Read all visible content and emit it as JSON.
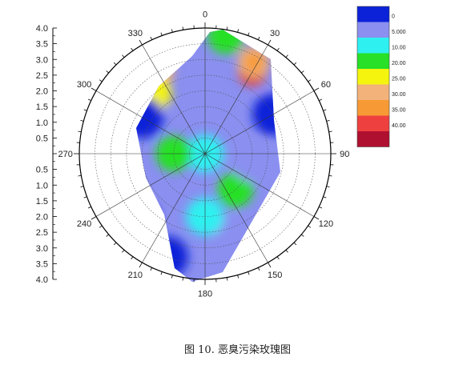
{
  "chart_data": {
    "type": "heatmap",
    "subtype": "polar-contour",
    "angular_ticks": [
      "0",
      "30",
      "60",
      "90",
      "120",
      "150",
      "180",
      "210",
      "240",
      "270",
      "300",
      "330"
    ],
    "radial_axis_upper_ticks": [
      "4.0",
      "3.5",
      "3.0",
      "2.5",
      "2.0",
      "1.5",
      "1.0",
      "0.5"
    ],
    "radial_axis_lower_ticks": [
      "0.5",
      "1.0",
      "1.5",
      "2.0",
      "2.5",
      "3.0",
      "3.5",
      "4.0"
    ],
    "r_range": [
      0,
      4
    ],
    "legend_position": "top-right",
    "legend": [
      {
        "label": "0",
        "color": "#0b22d8"
      },
      {
        "label": "5.000",
        "color": "#8a8ff0"
      },
      {
        "label": "10.00",
        "color": "#2ff0f0"
      },
      {
        "label": "20.00",
        "color": "#27e027"
      },
      {
        "label": "25.00",
        "color": "#f4f40f"
      },
      {
        "label": "30.00",
        "color": "#f2b27a"
      },
      {
        "label": "35.00",
        "color": "#f79a35"
      },
      {
        "label": "40.00",
        "color": "#ef4040"
      },
      {
        "label": "",
        "color": "#b01030"
      }
    ],
    "blobs": [
      {
        "theta": 0,
        "r": 0.0,
        "level": 2
      },
      {
        "theta": 30,
        "r": 3.0,
        "level": 7
      },
      {
        "theta": 28,
        "r": 3.3,
        "level": 5
      },
      {
        "theta": 330,
        "r": 3.0,
        "level": 5
      },
      {
        "theta": 320,
        "r": 2.5,
        "level": 4
      },
      {
        "theta": 10,
        "r": 3.8,
        "level": 3
      },
      {
        "theta": 300,
        "r": 2.3,
        "level": 0
      },
      {
        "theta": 60,
        "r": 2.5,
        "level": 0
      },
      {
        "theta": 225,
        "r": 3.0,
        "level": 0
      },
      {
        "theta": 200,
        "r": 3.5,
        "level": 0
      },
      {
        "theta": 270,
        "r": 1.0,
        "level": 3
      },
      {
        "theta": 140,
        "r": 1.5,
        "level": 3
      },
      {
        "theta": 100,
        "r": 1.5,
        "level": 1
      },
      {
        "theta": 160,
        "r": 2.8,
        "level": 1
      },
      {
        "theta": 180,
        "r": 2.0,
        "level": 2
      }
    ]
  },
  "caption": "图 10. 恶臭污染玫瑰图"
}
